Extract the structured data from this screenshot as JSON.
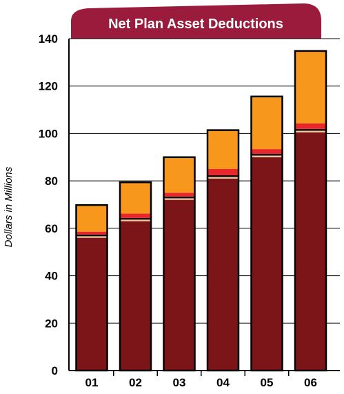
{
  "chart_data": {
    "type": "bar",
    "stacked": true,
    "title": "Net Plan Asset Deductions",
    "ylabel": "Dollars in Millions",
    "xlabel": "",
    "categories": [
      "01",
      "02",
      "03",
      "04",
      "05",
      "06"
    ],
    "ylim": [
      0,
      140
    ],
    "yticks": [
      0,
      20,
      40,
      60,
      80,
      100,
      120,
      140
    ],
    "grid": true,
    "legend": "none",
    "series": [
      {
        "color": "#7b1518",
        "values": [
          56,
          63,
          72,
          81,
          90,
          100.5
        ]
      },
      {
        "color": "#f2c9a0",
        "values": [
          0.8,
          0.8,
          0.8,
          0.8,
          0.8,
          0.8
        ]
      },
      {
        "color": "#1a0808",
        "values": [
          0.6,
          0.6,
          0.6,
          0.6,
          0.6,
          0.6
        ]
      },
      {
        "color": "#e8262b",
        "values": [
          1.2,
          1.8,
          1.6,
          2.6,
          2.0,
          2.3
        ]
      },
      {
        "color": "#f7981d",
        "values": [
          11.2,
          13.2,
          15.0,
          16.4,
          22.2,
          30.6
        ]
      }
    ],
    "totals": [
      69.8,
      79.4,
      90.0,
      101.4,
      115.6,
      134.8
    ]
  },
  "colors": {
    "banner": "#9b1b3c",
    "axis": "#000000",
    "grid": "#000000",
    "background": "#ffffff"
  }
}
